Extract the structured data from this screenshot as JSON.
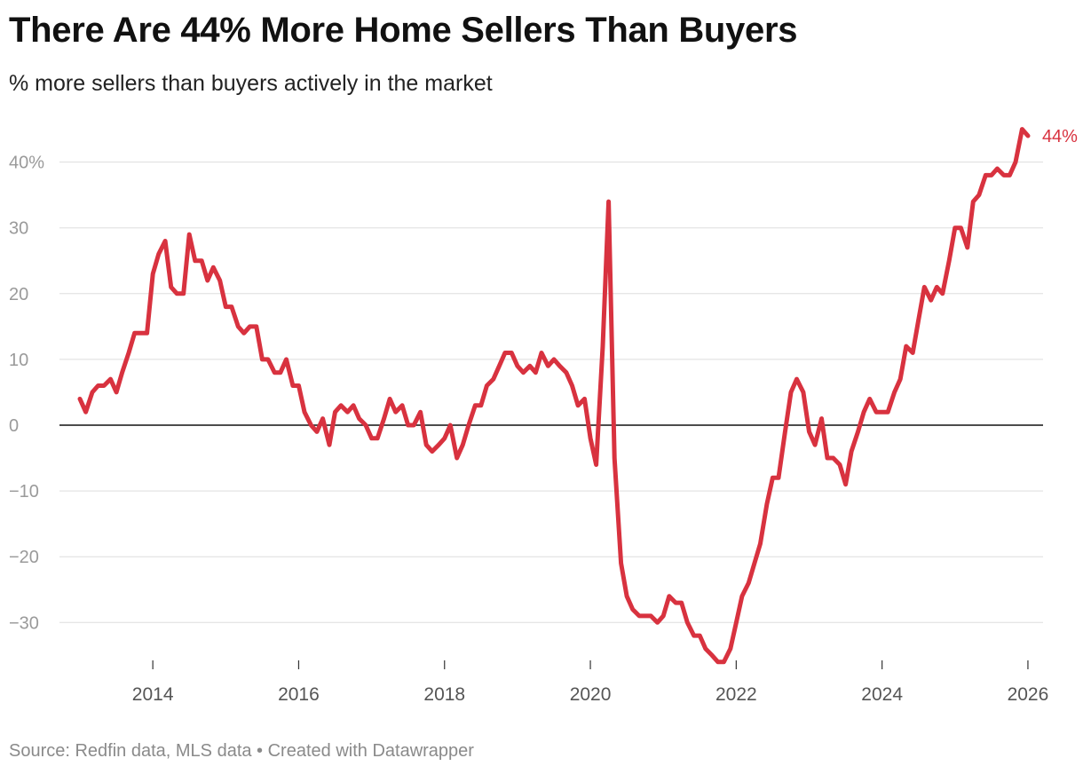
{
  "title": "There Are 44% More Home Sellers Than Buyers",
  "subtitle": "% more sellers than buyers actively in the market",
  "footer": "Source: Redfin data, MLS data • Created with Datawrapper",
  "colors": {
    "line": "#d8323f",
    "grid": "#dddddd",
    "zero": "#111111",
    "tick_label": "#9a9a9a",
    "axis_label": "#555555"
  },
  "chart_data": {
    "type": "line",
    "title": "There Are 44% More Home Sellers Than Buyers",
    "subtitle": "% more sellers than buyers actively in the market",
    "xlabel": "",
    "ylabel": "",
    "ylim": [
      -36,
      45
    ],
    "xlim": [
      2013.0,
      2026.2
    ],
    "grid": true,
    "y_ticks": [
      {
        "value": 40,
        "label": "40%"
      },
      {
        "value": 30,
        "label": "30"
      },
      {
        "value": 20,
        "label": "20"
      },
      {
        "value": 10,
        "label": "10"
      },
      {
        "value": 0,
        "label": "0"
      },
      {
        "value": -10,
        "label": "−10"
      },
      {
        "value": -20,
        "label": "−20"
      },
      {
        "value": -30,
        "label": "−30"
      }
    ],
    "x_ticks": [
      {
        "value": 2014,
        "label": "2014"
      },
      {
        "value": 2016,
        "label": "2016"
      },
      {
        "value": 2018,
        "label": "2018"
      },
      {
        "value": 2020,
        "label": "2020"
      },
      {
        "value": 2022,
        "label": "2022"
      },
      {
        "value": 2024,
        "label": "2024"
      },
      {
        "value": 2026,
        "label": "2026"
      }
    ],
    "end_label": "44%",
    "series": [
      {
        "points": [
          [
            2013.0,
            4
          ],
          [
            2013.08,
            2
          ],
          [
            2013.17,
            5
          ],
          [
            2013.25,
            6
          ],
          [
            2013.33,
            6
          ],
          [
            2013.42,
            7
          ],
          [
            2013.5,
            5
          ],
          [
            2013.58,
            8
          ],
          [
            2013.67,
            11
          ],
          [
            2013.75,
            14
          ],
          [
            2013.83,
            14
          ],
          [
            2013.92,
            14
          ],
          [
            2014.0,
            23
          ],
          [
            2014.08,
            26
          ],
          [
            2014.17,
            28
          ],
          [
            2014.25,
            21
          ],
          [
            2014.33,
            20
          ],
          [
            2014.42,
            20
          ],
          [
            2014.5,
            29
          ],
          [
            2014.58,
            25
          ],
          [
            2014.67,
            25
          ],
          [
            2014.75,
            22
          ],
          [
            2014.83,
            24
          ],
          [
            2014.92,
            22
          ],
          [
            2015.0,
            18
          ],
          [
            2015.08,
            18
          ],
          [
            2015.17,
            15
          ],
          [
            2015.25,
            14
          ],
          [
            2015.33,
            15
          ],
          [
            2015.42,
            15
          ],
          [
            2015.5,
            10
          ],
          [
            2015.58,
            10
          ],
          [
            2015.67,
            8
          ],
          [
            2015.75,
            8
          ],
          [
            2015.83,
            10
          ],
          [
            2015.92,
            6
          ],
          [
            2016.0,
            6
          ],
          [
            2016.08,
            2
          ],
          [
            2016.17,
            0
          ],
          [
            2016.25,
            -1
          ],
          [
            2016.33,
            1
          ],
          [
            2016.42,
            -3
          ],
          [
            2016.5,
            2
          ],
          [
            2016.58,
            3
          ],
          [
            2016.67,
            2
          ],
          [
            2016.75,
            3
          ],
          [
            2016.83,
            1
          ],
          [
            2016.92,
            0
          ],
          [
            2017.0,
            -2
          ],
          [
            2017.08,
            -2
          ],
          [
            2017.17,
            1
          ],
          [
            2017.25,
            4
          ],
          [
            2017.33,
            2
          ],
          [
            2017.42,
            3
          ],
          [
            2017.5,
            0
          ],
          [
            2017.58,
            0
          ],
          [
            2017.67,
            2
          ],
          [
            2017.75,
            -3
          ],
          [
            2017.83,
            -4
          ],
          [
            2017.92,
            -3
          ],
          [
            2018.0,
            -2
          ],
          [
            2018.08,
            0
          ],
          [
            2018.17,
            -5
          ],
          [
            2018.25,
            -3
          ],
          [
            2018.33,
            0
          ],
          [
            2018.42,
            3
          ],
          [
            2018.5,
            3
          ],
          [
            2018.58,
            6
          ],
          [
            2018.67,
            7
          ],
          [
            2018.75,
            9
          ],
          [
            2018.83,
            11
          ],
          [
            2018.92,
            11
          ],
          [
            2019.0,
            9
          ],
          [
            2019.08,
            8
          ],
          [
            2019.17,
            9
          ],
          [
            2019.25,
            8
          ],
          [
            2019.33,
            11
          ],
          [
            2019.42,
            9
          ],
          [
            2019.5,
            10
          ],
          [
            2019.58,
            9
          ],
          [
            2019.67,
            8
          ],
          [
            2019.75,
            6
          ],
          [
            2019.83,
            3
          ],
          [
            2019.92,
            4
          ],
          [
            2020.0,
            -2
          ],
          [
            2020.08,
            -6
          ],
          [
            2020.17,
            12
          ],
          [
            2020.25,
            34
          ],
          [
            2020.33,
            -5
          ],
          [
            2020.42,
            -21
          ],
          [
            2020.5,
            -26
          ],
          [
            2020.58,
            -28
          ],
          [
            2020.67,
            -29
          ],
          [
            2020.75,
            -29
          ],
          [
            2020.83,
            -29
          ],
          [
            2020.92,
            -30
          ],
          [
            2021.0,
            -29
          ],
          [
            2021.08,
            -26
          ],
          [
            2021.17,
            -27
          ],
          [
            2021.25,
            -27
          ],
          [
            2021.33,
            -30
          ],
          [
            2021.42,
            -32
          ],
          [
            2021.5,
            -32
          ],
          [
            2021.58,
            -34
          ],
          [
            2021.67,
            -35
          ],
          [
            2021.75,
            -36
          ],
          [
            2021.83,
            -36
          ],
          [
            2021.92,
            -34
          ],
          [
            2022.0,
            -30
          ],
          [
            2022.08,
            -26
          ],
          [
            2022.17,
            -24
          ],
          [
            2022.25,
            -21
          ],
          [
            2022.33,
            -18
          ],
          [
            2022.42,
            -12
          ],
          [
            2022.5,
            -8
          ],
          [
            2022.58,
            -8
          ],
          [
            2022.67,
            -1
          ],
          [
            2022.75,
            5
          ],
          [
            2022.83,
            7
          ],
          [
            2022.92,
            5
          ],
          [
            2023.0,
            -1
          ],
          [
            2023.08,
            -3
          ],
          [
            2023.17,
            1
          ],
          [
            2023.25,
            -5
          ],
          [
            2023.33,
            -5
          ],
          [
            2023.42,
            -6
          ],
          [
            2023.5,
            -9
          ],
          [
            2023.58,
            -4
          ],
          [
            2023.67,
            -1
          ],
          [
            2023.75,
            2
          ],
          [
            2023.83,
            4
          ],
          [
            2023.92,
            2
          ],
          [
            2024.0,
            2
          ],
          [
            2024.08,
            2
          ],
          [
            2024.17,
            5
          ],
          [
            2024.25,
            7
          ],
          [
            2024.33,
            12
          ],
          [
            2024.42,
            11
          ],
          [
            2024.5,
            16
          ],
          [
            2024.58,
            21
          ],
          [
            2024.67,
            19
          ],
          [
            2024.75,
            21
          ],
          [
            2024.83,
            20
          ],
          [
            2024.92,
            25
          ],
          [
            2025.0,
            30
          ],
          [
            2025.08,
            30
          ],
          [
            2025.17,
            27
          ],
          [
            2025.25,
            34
          ],
          [
            2025.33,
            35
          ],
          [
            2025.42,
            38
          ],
          [
            2025.5,
            38
          ],
          [
            2025.58,
            39
          ],
          [
            2025.67,
            38
          ],
          [
            2025.75,
            38
          ],
          [
            2025.83,
            40
          ],
          [
            2025.92,
            45
          ],
          [
            2026.0,
            44
          ]
        ]
      }
    ]
  }
}
